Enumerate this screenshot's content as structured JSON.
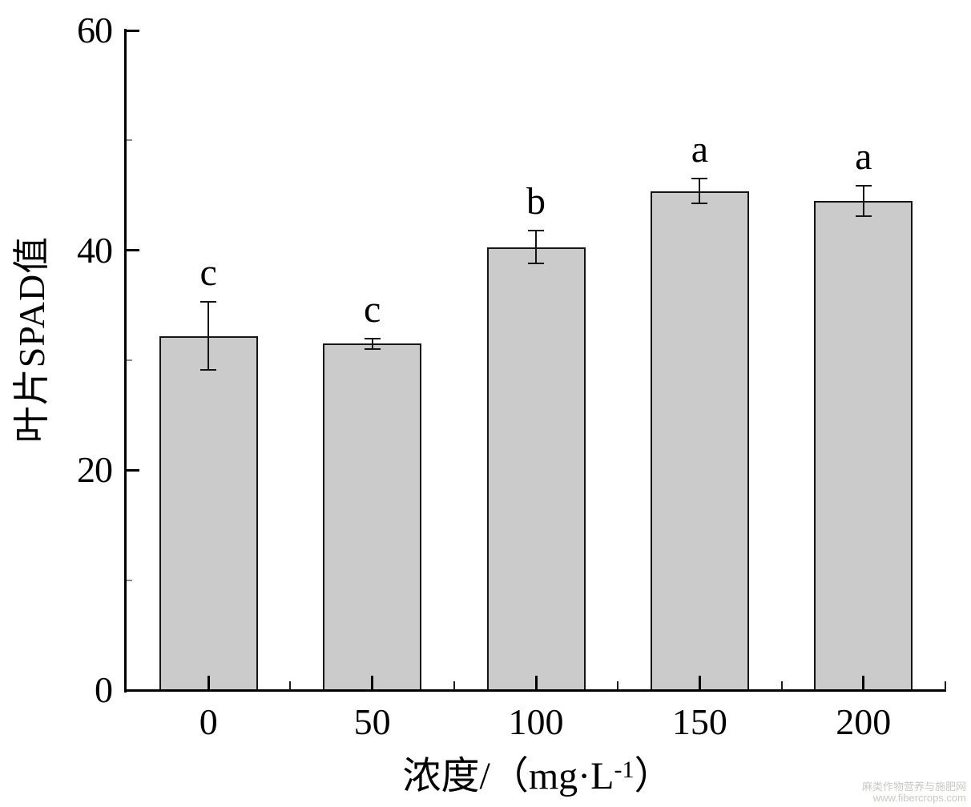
{
  "figure": {
    "background": "#ffffff",
    "watermark": {
      "line1": "麻类作物营养与施肥网",
      "line2": "www.fibercrops.com",
      "color": "#c9c8c3"
    }
  },
  "chart_data": {
    "type": "bar",
    "title": "",
    "xlabel": {
      "text": "浓度/（mg·L⁻¹）",
      "prefix": "浓度/（mg·L",
      "superscript": "-1",
      "suffix": "）"
    },
    "ylabel": "叶片SPAD值",
    "categories": [
      "0",
      "50",
      "100",
      "150",
      "200"
    ],
    "values": [
      32.2,
      31.5,
      40.3,
      45.4,
      44.5
    ],
    "errors": [
      3.1,
      0.5,
      1.5,
      1.1,
      1.4
    ],
    "sig_letters": [
      "c",
      "c",
      "b",
      "a",
      "a"
    ],
    "ylim": [
      0,
      60
    ],
    "y_major_ticks": [
      0,
      20,
      40,
      60
    ],
    "y_minor_ticks": [
      10,
      30,
      50
    ],
    "grid": false,
    "legend": "none",
    "bar_fill": "#cbcbcb",
    "bar_border": "#151515",
    "axis_color": "#000000"
  }
}
